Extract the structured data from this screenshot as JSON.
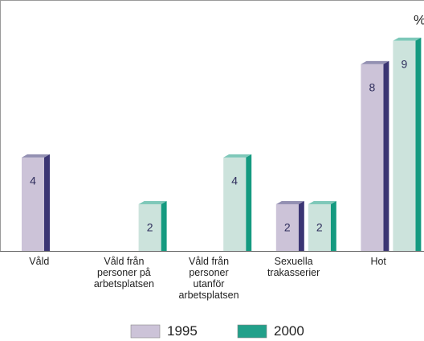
{
  "chart_data": {
    "type": "bar3d",
    "unit_label": "%",
    "categories": [
      "Våld",
      "Våld från personer på arbetsplatsen",
      "Våld från personer utanför arbetsplatsen",
      "Sexuella trakasserier",
      "Hot"
    ],
    "series": [
      {
        "name": "1995",
        "color": "#ccc3d8",
        "side_color": "#3b3573",
        "values": [
          4,
          null,
          null,
          2,
          8
        ]
      },
      {
        "name": "2000",
        "color": "#cce3dc",
        "side_color": "#149a80",
        "legend_color": "#22a08a",
        "values": [
          null,
          2,
          4,
          2,
          9
        ]
      }
    ],
    "ylim": [
      0,
      10.75
    ],
    "data_labels": true
  }
}
